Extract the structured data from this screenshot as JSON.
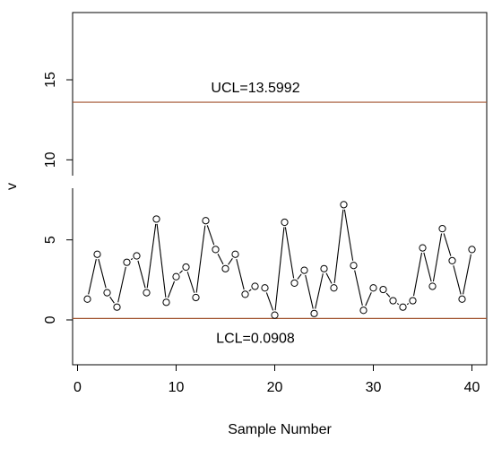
{
  "chart_data": {
    "type": "line",
    "xlabel": "Sample Number",
    "ylabel": "v",
    "xlim": [
      -0.5,
      41.5
    ],
    "ylim": [
      -2.8,
      19.2
    ],
    "xticks": [
      0,
      10,
      20,
      30,
      40
    ],
    "yticks": [
      0,
      5,
      10,
      15
    ],
    "grid": false,
    "control_limits": {
      "ucl": {
        "value": 13.5992,
        "label": "UCL=13.5992",
        "color": "#a0522d"
      },
      "lcl": {
        "value": 0.0908,
        "label": "LCL=0.0908",
        "color": "#a0522d"
      }
    },
    "marker": "open-circle",
    "series": [
      {
        "x": [
          1,
          2,
          3,
          4,
          5,
          6,
          7,
          8,
          9,
          10,
          11,
          12,
          13,
          14,
          15,
          16,
          17,
          18,
          19,
          20,
          21,
          22,
          23,
          24,
          25,
          26,
          27,
          28,
          29,
          30,
          31,
          32,
          33,
          34,
          35,
          36,
          37,
          38,
          39,
          40
        ],
        "values": [
          1.3,
          4.1,
          1.7,
          0.8,
          3.6,
          4.0,
          1.7,
          6.3,
          1.1,
          2.7,
          3.3,
          1.4,
          6.2,
          4.4,
          3.2,
          4.1,
          1.6,
          2.1,
          2.0,
          0.3,
          6.1,
          2.3,
          3.1,
          0.4,
          3.2,
          2.0,
          7.2,
          3.4,
          0.6,
          2.0,
          1.9,
          1.2,
          0.8,
          1.2,
          4.5,
          2.1,
          5.7,
          3.7,
          1.3,
          4.4
        ]
      }
    ]
  }
}
